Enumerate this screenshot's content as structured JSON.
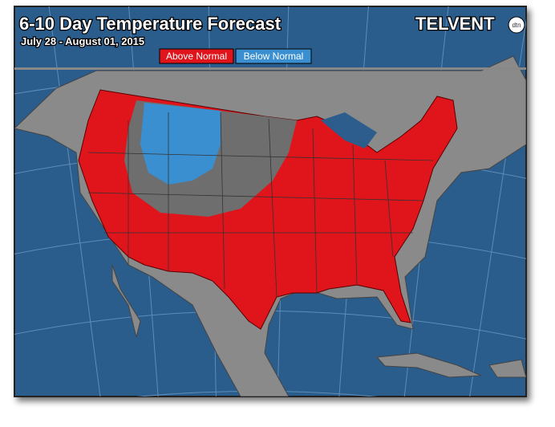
{
  "header": {
    "title": "6-10 Day Temperature Forecast",
    "subtitle": "July 28 - August 01, 2015",
    "logo": "TELVENT",
    "logo_badge": "dtn"
  },
  "legend": [
    {
      "label": "Above Normal",
      "color": "#e0141b"
    },
    {
      "label": "Below Normal",
      "color": "#3a8fd0"
    }
  ]
}
